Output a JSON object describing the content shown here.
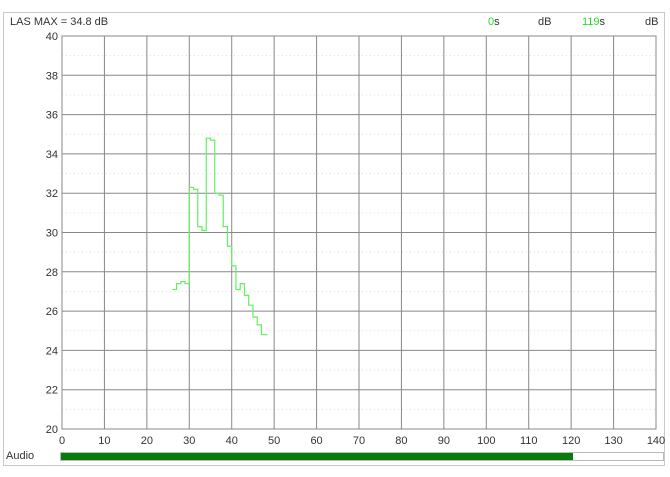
{
  "header": {
    "metric_label": "LAS MAX = 34.8 dB",
    "cursor1_value": "0",
    "cursor1_unit": "s",
    "cursor1_db": "dB",
    "cursor2_value": "119",
    "cursor2_unit": "s",
    "cursor2_db": "dB"
  },
  "audio": {
    "label": "Audio",
    "progress_fraction": 0.85
  },
  "colors": {
    "trace": "#66ee66",
    "cursor": "#22dd22",
    "progress": "#0a7a0a",
    "grid": "#888888"
  },
  "chart_data": {
    "type": "line",
    "step": true,
    "xlim": [
      0,
      140
    ],
    "ylim": [
      20,
      40
    ],
    "xticks": [
      0,
      10,
      20,
      30,
      40,
      50,
      60,
      70,
      80,
      90,
      100,
      110,
      120,
      130,
      140
    ],
    "yticks": [
      20,
      22,
      24,
      26,
      28,
      30,
      32,
      34,
      36,
      38,
      40
    ],
    "grid": true,
    "x": [
      26,
      27,
      28,
      29,
      30,
      31,
      32,
      33,
      34,
      35,
      36,
      37,
      38,
      39,
      40,
      41,
      42,
      43,
      44,
      45,
      46,
      47,
      48.5
    ],
    "y": [
      27.1,
      27.4,
      27.5,
      27.4,
      32.3,
      32.2,
      30.3,
      30.1,
      34.8,
      34.7,
      32.0,
      31.9,
      30.3,
      29.3,
      28.3,
      27.1,
      27.4,
      26.8,
      26.3,
      25.7,
      25.3,
      24.8,
      24.8
    ]
  }
}
